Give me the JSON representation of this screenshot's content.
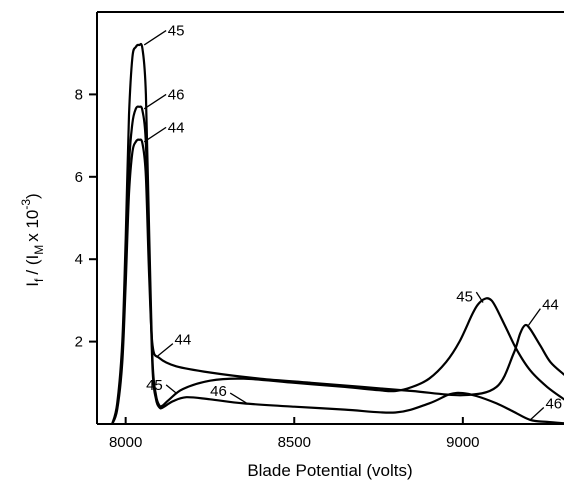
{
  "chart_data": {
    "type": "line",
    "title": "",
    "xlabel": "Blade Potential (volts)",
    "ylabel": "I_f / (I_M x 10^-3)",
    "ylabel_parts": {
      "a": "I",
      "b": "f",
      "c": "/ (I",
      "d": "M",
      "e": "x 10",
      "f": "-3",
      "g": ")"
    },
    "xlim": [
      7915,
      9300
    ],
    "ylim": [
      0,
      10
    ],
    "xticks": [
      8000,
      8500,
      9000
    ],
    "xtick_labels": [
      "8000",
      "8500",
      "9000"
    ],
    "yticks": [
      2,
      4,
      6,
      8
    ],
    "ytick_labels": [
      "2",
      "4",
      "6",
      "8"
    ],
    "grid": false,
    "series": [
      {
        "name": "45",
        "x": [
          7960,
          7975,
          7990,
          8000,
          8010,
          8020,
          8030,
          8040,
          8050,
          8060,
          8070,
          8080,
          8090,
          8100,
          8110,
          8130,
          8170,
          8250,
          8350,
          8500,
          8650,
          8750,
          8800,
          8850,
          8900,
          8950,
          8990,
          9030,
          9050,
          9070,
          9085,
          9100,
          9130,
          9160,
          9200,
          9250,
          9300
        ],
        "y": [
          0,
          0.5,
          2.0,
          4.5,
          7.5,
          8.9,
          9.15,
          9.2,
          9.1,
          8.0,
          4.5,
          1.5,
          0.7,
          0.45,
          0.45,
          0.6,
          0.85,
          1.05,
          1.1,
          1.0,
          0.9,
          0.82,
          0.8,
          0.9,
          1.1,
          1.5,
          2.0,
          2.7,
          2.95,
          3.05,
          3.0,
          2.8,
          2.3,
          1.8,
          1.3,
          0.9,
          0.6
        ]
      },
      {
        "name": "46",
        "x": [
          7960,
          7975,
          7990,
          8000,
          8010,
          8020,
          8030,
          8040,
          8050,
          8060,
          8070,
          8080,
          8090,
          8100,
          8110,
          8140,
          8180,
          8250,
          8350,
          8500,
          8650,
          8800,
          8900,
          8960,
          9000,
          9040,
          9100,
          9150,
          9200,
          9250,
          9300
        ],
        "y": [
          0,
          0.4,
          1.7,
          3.8,
          6.3,
          7.3,
          7.65,
          7.7,
          7.6,
          6.8,
          4.0,
          1.3,
          0.6,
          0.4,
          0.4,
          0.55,
          0.65,
          0.6,
          0.5,
          0.42,
          0.35,
          0.28,
          0.5,
          0.72,
          0.75,
          0.68,
          0.5,
          0.3,
          0.1,
          0.05,
          0.02
        ]
      },
      {
        "name": "44",
        "x": [
          7960,
          7975,
          7990,
          8000,
          8010,
          8020,
          8030,
          8040,
          8050,
          8060,
          8070,
          8080,
          8100,
          8150,
          8250,
          8400,
          8550,
          8700,
          8850,
          9000,
          9100,
          9150,
          9170,
          9185,
          9200,
          9230,
          9260,
          9300
        ],
        "y": [
          0,
          0.35,
          1.5,
          3.4,
          5.6,
          6.6,
          6.85,
          6.9,
          6.8,
          6.0,
          3.5,
          1.9,
          1.6,
          1.4,
          1.25,
          1.1,
          1.0,
          0.9,
          0.8,
          0.7,
          0.9,
          1.7,
          2.2,
          2.4,
          2.3,
          1.9,
          1.5,
          1.2
        ]
      }
    ]
  }
}
